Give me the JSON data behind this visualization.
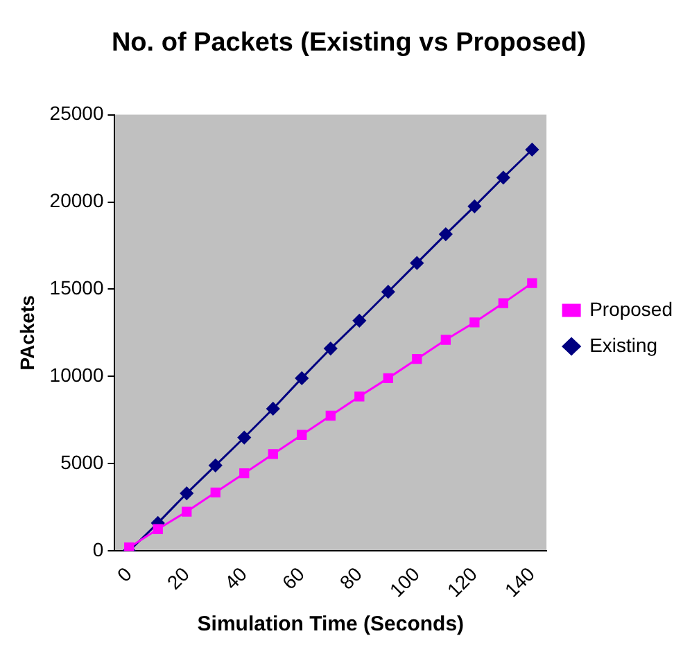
{
  "chart_data": {
    "type": "line",
    "title": "No. of Packets (Existing vs Proposed)",
    "xlabel": "Simulation Time (Seconds)",
    "ylabel": "PAckets",
    "categories": [
      "0",
      null,
      "20",
      null,
      "40",
      null,
      "60",
      null,
      "80",
      null,
      "100",
      null,
      "120",
      null,
      "140"
    ],
    "series": [
      {
        "name": "Existing",
        "color": "#000080",
        "marker": "diamond",
        "values": [
          0,
          1600,
          3300,
          4900,
          6500,
          8150,
          9900,
          11600,
          13200,
          14850,
          16500,
          18150,
          19750,
          21400,
          23000
        ]
      },
      {
        "name": "Proposed",
        "color": "#ff00ff",
        "marker": "square",
        "values": [
          200,
          1250,
          2250,
          3350,
          4450,
          5550,
          6650,
          7750,
          8850,
          9900,
          11000,
          12100,
          13100,
          14200,
          15350
        ]
      }
    ],
    "ylim": [
      0,
      25000
    ],
    "yticks": [
      0,
      5000,
      10000,
      15000,
      20000,
      25000
    ],
    "grid": false,
    "legend": "right"
  }
}
